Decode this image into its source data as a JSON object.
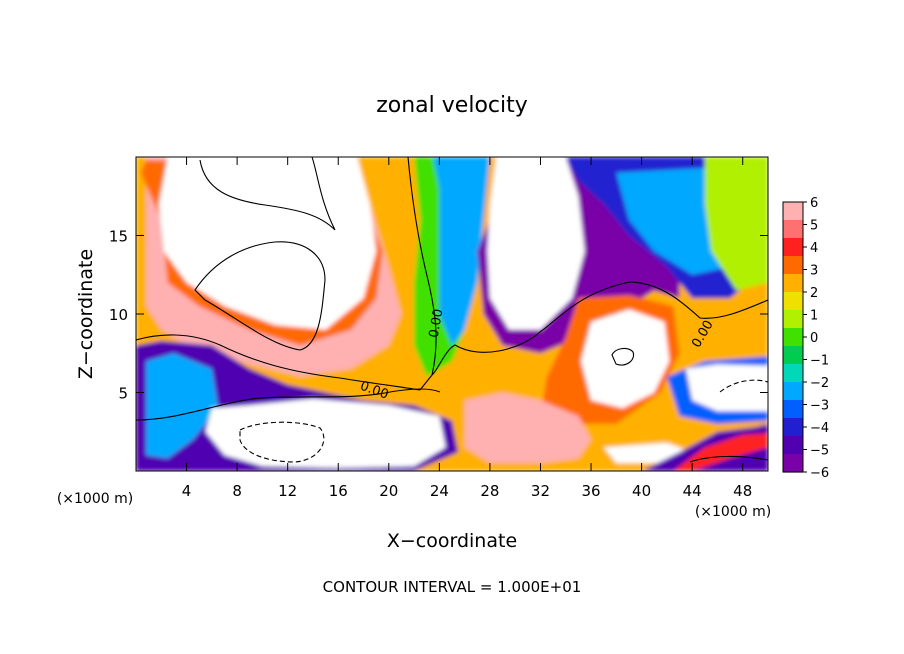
{
  "chart_data": {
    "type": "heatmap",
    "title": "zonal velocity",
    "xlabel": "X−coordinate",
    "ylabel": "Z−coordinate",
    "x_unit_left": "(×1000 m)",
    "x_unit_right": "(×1000 m)",
    "footer": "CONTOUR INTERVAL = 1.000E+01",
    "xlim": [
      0,
      50
    ],
    "ylim": [
      0,
      20
    ],
    "x_ticks": [
      4,
      8,
      12,
      16,
      20,
      24,
      28,
      32,
      36,
      40,
      44,
      48
    ],
    "x_tick_labels": [
      "4",
      "8",
      "12",
      "16",
      "20",
      "24",
      "28",
      "32",
      "36",
      "40",
      "44",
      "48"
    ],
    "y_ticks": [
      5,
      10,
      15
    ],
    "y_tick_labels": [
      "5",
      "10",
      "15"
    ],
    "colorbar": {
      "min": -6,
      "max": 6,
      "labels": [
        "6",
        "5",
        "4",
        "3",
        "2",
        "1",
        "0",
        "−1",
        "−2",
        "−3",
        "−4",
        "−5",
        "−6"
      ],
      "colors": [
        "#ffb0b0",
        "#ff7070",
        "#ff2020",
        "#ff6a00",
        "#ffb000",
        "#f0e000",
        "#b0f000",
        "#40e000",
        "#00cc50",
        "#00d8b8",
        "#00a8ff",
        "#0060ff",
        "#2020d0",
        "#5000b0",
        "#7a00a8"
      ]
    },
    "contour_labels": [
      "0.00",
      "0.00",
      "0.00"
    ],
    "regions": [
      {
        "value": 2.5,
        "polygon": [
          [
            0,
            20
          ],
          [
            50,
            20
          ],
          [
            50,
            0
          ],
          [
            0,
            0
          ]
        ]
      },
      {
        "value": 6,
        "polygon": [
          [
            0.8,
            20
          ],
          [
            17,
            20
          ],
          [
            18.5,
            17
          ],
          [
            20,
            13
          ],
          [
            21,
            10
          ],
          [
            20,
            8
          ],
          [
            17,
            6.5
          ],
          [
            13,
            6
          ],
          [
            8,
            7
          ],
          [
            4,
            8
          ],
          [
            2,
            9
          ],
          [
            0.8,
            10.5
          ]
        ]
      },
      {
        "value": 3.5,
        "polygon": [
          [
            0.4,
            19
          ],
          [
            0.9,
            18
          ],
          [
            2,
            16
          ],
          [
            2.5,
            12
          ],
          [
            5,
            10.5
          ],
          [
            9,
            9
          ],
          [
            13,
            8
          ],
          [
            17,
            9
          ],
          [
            19,
            11
          ],
          [
            19.5,
            14
          ],
          [
            18,
            17
          ],
          [
            17,
            19.5
          ],
          [
            0.8,
            19.8
          ]
        ]
      },
      {
        "value": 7,
        "polygon": [
          [
            2.5,
            20
          ],
          [
            17.5,
            20
          ],
          [
            18.5,
            17
          ],
          [
            19,
            14
          ],
          [
            18,
            11
          ],
          [
            15,
            9
          ],
          [
            11,
            9.3
          ],
          [
            7,
            10.5
          ],
          [
            4,
            12
          ],
          [
            2.2,
            14
          ],
          [
            1.8,
            17
          ]
        ]
      },
      {
        "value": 0,
        "polygon": [
          [
            22,
            20
          ],
          [
            27.5,
            20
          ],
          [
            27,
            17
          ],
          [
            26.5,
            12
          ],
          [
            26,
            9
          ],
          [
            25,
            7
          ],
          [
            23,
            6
          ],
          [
            22,
            8
          ],
          [
            22,
            12
          ],
          [
            22.5,
            16
          ]
        ]
      },
      {
        "value": -2,
        "polygon": [
          [
            23.5,
            20
          ],
          [
            28,
            20
          ],
          [
            27.5,
            16
          ],
          [
            27,
            12
          ],
          [
            26,
            9
          ],
          [
            25,
            8
          ],
          [
            24,
            10
          ],
          [
            24,
            14
          ],
          [
            24,
            18
          ]
        ]
      },
      {
        "value": -5.5,
        "polygon": [
          [
            27.5,
            20
          ],
          [
            30,
            20
          ],
          [
            28.5,
            17
          ],
          [
            27,
            14
          ],
          [
            27.5,
            10
          ],
          [
            29,
            8
          ],
          [
            32,
            7.5
          ],
          [
            35,
            8.5
          ],
          [
            39,
            10.5
          ],
          [
            41,
            11.5
          ],
          [
            43,
            11
          ],
          [
            43,
            13
          ],
          [
            40,
            15
          ],
          [
            38,
            17
          ],
          [
            36,
            19
          ],
          [
            34,
            20
          ]
        ]
      },
      {
        "value": -4,
        "polygon": [
          [
            34,
            20
          ],
          [
            50,
            20
          ],
          [
            50,
            13
          ],
          [
            47,
            11
          ],
          [
            44,
            11
          ],
          [
            42,
            13
          ],
          [
            39,
            15
          ],
          [
            37,
            17
          ],
          [
            35,
            18.5
          ]
        ]
      },
      {
        "value": -2.5,
        "polygon": [
          [
            38,
            19
          ],
          [
            49.5,
            19.5
          ],
          [
            49.5,
            15
          ],
          [
            47,
            13
          ],
          [
            44,
            12.5
          ],
          [
            41,
            14
          ],
          [
            39,
            16
          ]
        ]
      },
      {
        "value": 1,
        "polygon": [
          [
            45,
            20
          ],
          [
            50,
            20
          ],
          [
            50,
            12
          ],
          [
            47.5,
            11.5
          ],
          [
            45.5,
            14
          ],
          [
            45,
            17
          ]
        ]
      },
      {
        "value": 7,
        "polygon": [
          [
            28.5,
            20
          ],
          [
            34,
            20
          ],
          [
            35,
            17.5
          ],
          [
            35.5,
            14
          ],
          [
            34.5,
            11
          ],
          [
            32,
            9
          ],
          [
            29.5,
            9
          ],
          [
            28,
            11
          ],
          [
            27.8,
            14
          ],
          [
            28,
            17
          ]
        ]
      },
      {
        "value": 3,
        "polygon": [
          [
            35,
            11
          ],
          [
            39,
            11.2
          ],
          [
            42.5,
            10.5
          ],
          [
            43,
            7.5
          ],
          [
            41.5,
            5
          ],
          [
            38,
            3
          ],
          [
            34.5,
            3
          ],
          [
            32,
            3.5
          ],
          [
            32.5,
            6
          ],
          [
            34,
            8.5
          ]
        ]
      },
      {
        "value": 7,
        "polygon": [
          [
            36,
            9.5
          ],
          [
            39,
            10.3
          ],
          [
            41.8,
            9.5
          ],
          [
            42.2,
            7
          ],
          [
            41,
            5
          ],
          [
            38.5,
            4
          ],
          [
            36,
            4.5
          ],
          [
            35.2,
            7
          ]
        ]
      },
      {
        "value": 6,
        "polygon": [
          [
            26,
            4.5
          ],
          [
            29,
            5
          ],
          [
            32,
            4.5
          ],
          [
            35,
            3.5
          ],
          [
            36,
            2
          ],
          [
            35,
            0.8
          ],
          [
            32,
            0.5
          ],
          [
            28,
            0.5
          ],
          [
            26,
            1.5
          ]
        ]
      },
      {
        "value": -5,
        "polygon": [
          [
            0,
            8
          ],
          [
            2,
            8.3
          ],
          [
            6,
            8
          ],
          [
            9,
            6.5
          ],
          [
            12,
            5.5
          ],
          [
            18,
            4.5
          ],
          [
            22,
            4.2
          ],
          [
            25,
            3.2
          ],
          [
            25.5,
            1.2
          ],
          [
            22,
            0
          ],
          [
            0,
            0
          ]
        ]
      },
      {
        "value": -2,
        "polygon": [
          [
            0.8,
            7
          ],
          [
            3,
            7.5
          ],
          [
            6,
            6.5
          ],
          [
            6.5,
            4
          ],
          [
            4.5,
            2
          ],
          [
            2.5,
            0.8
          ],
          [
            0.8,
            1
          ]
        ]
      },
      {
        "value": 7,
        "polygon": [
          [
            6,
            4
          ],
          [
            9,
            4.2
          ],
          [
            14,
            4.6
          ],
          [
            20,
            4.2
          ],
          [
            24,
            3.5
          ],
          [
            24.5,
            1.5
          ],
          [
            22,
            0.3
          ],
          [
            16,
            0.2
          ],
          [
            10,
            0.3
          ],
          [
            7,
            1
          ],
          [
            5.5,
            2.5
          ]
        ]
      },
      {
        "value": 7,
        "polygon": [
          [
            37,
            1.5
          ],
          [
            42,
            1.8
          ],
          [
            44,
            1.2
          ],
          [
            43,
            0.5
          ],
          [
            38,
            0.5
          ]
        ]
      },
      {
        "value": -4.5,
        "polygon": [
          [
            40,
            0
          ],
          [
            43,
            1.2
          ],
          [
            46,
            2.5
          ],
          [
            49,
            2.8
          ],
          [
            50,
            3
          ],
          [
            50,
            0
          ]
        ]
      },
      {
        "value": 4,
        "polygon": [
          [
            42.5,
            0
          ],
          [
            45,
            1.5
          ],
          [
            48,
            2.3
          ],
          [
            50,
            2.4
          ],
          [
            50,
            1.5
          ],
          [
            47,
            0.8
          ],
          [
            44,
            0
          ]
        ]
      },
      {
        "value": -3.5,
        "polygon": [
          [
            42,
            6
          ],
          [
            45,
            7
          ],
          [
            50,
            7.3
          ],
          [
            50,
            3.2
          ],
          [
            46,
            3
          ],
          [
            43,
            3.5
          ]
        ]
      },
      {
        "value": 7,
        "polygon": [
          [
            43.5,
            6.5
          ],
          [
            46,
            6.8
          ],
          [
            50,
            6.7
          ],
          [
            50,
            3.8
          ],
          [
            46,
            3.8
          ],
          [
            44,
            4.5
          ]
        ]
      }
    ]
  }
}
